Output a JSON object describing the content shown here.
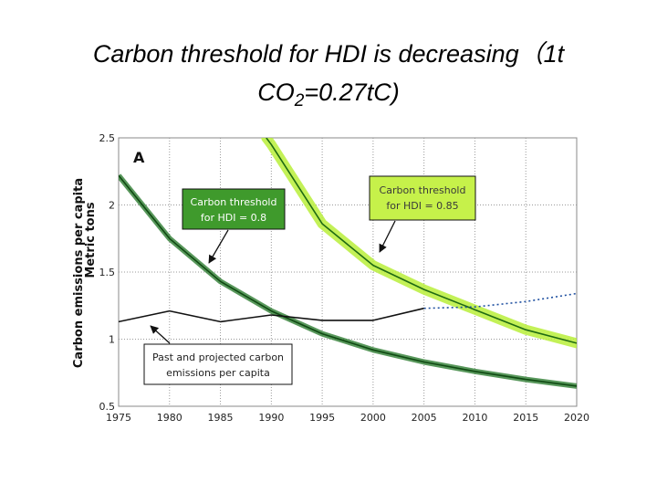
{
  "title": {
    "line1": "Carbon threshold for HDI is decreasing（1t",
    "line2_pre": "CO",
    "line2_sub": "2",
    "line2_post": "=0.27tC)"
  },
  "chart_data": {
    "type": "line",
    "panel_label": "A",
    "ylabel_line1": "Carbon emissions per capita",
    "ylabel_line2": "Metric tons",
    "xlim": [
      1975,
      2020
    ],
    "ylim": [
      0.5,
      2.5
    ],
    "x_ticks": [
      1975,
      1980,
      1985,
      1990,
      1995,
      2000,
      2005,
      2010,
      2015,
      2020
    ],
    "x_tick_labels": [
      "1975",
      "1980",
      "1985",
      "1990",
      "1995",
      "2000",
      "2005",
      "2010",
      "2015",
      "2020"
    ],
    "y_ticks": [
      0.5,
      1,
      1.5,
      2,
      2.5
    ],
    "y_tick_labels": [
      "0.5",
      "1",
      "1.5",
      "2",
      "2.5"
    ],
    "grid": true,
    "series": [
      {
        "name": "Carbon threshold for HDI = 0.8",
        "x": [
          1975,
          1980,
          1985,
          1990,
          1995,
          2000,
          2005,
          2010,
          2015,
          2020
        ],
        "y": [
          2.22,
          1.75,
          1.43,
          1.21,
          1.04,
          0.92,
          0.83,
          0.76,
          0.7,
          0.65
        ],
        "color": "#1a6b1a"
      },
      {
        "name": "Carbon threshold for HDI = 0.85",
        "x": [
          1989.5,
          1990,
          1995,
          2000,
          2005,
          2010,
          2015,
          2020
        ],
        "y": [
          2.5,
          2.45,
          1.86,
          1.55,
          1.37,
          1.22,
          1.07,
          0.97
        ],
        "color": "#2e7d1e"
      },
      {
        "name": "Past and projected carbon emissions per capita",
        "x": [
          1975,
          1980,
          1985,
          1990,
          1995,
          2000,
          2005
        ],
        "y": [
          1.13,
          1.21,
          1.13,
          1.18,
          1.14,
          1.14,
          1.23
        ],
        "color": "#111111"
      },
      {
        "name": "Projected (dotted)",
        "x": [
          2005,
          2010,
          2015,
          2020
        ],
        "y": [
          1.23,
          1.24,
          1.28,
          1.34
        ],
        "color": "#1e4fa0"
      }
    ],
    "annotations": [
      {
        "line1": "Carbon threshold",
        "line2": "for HDI = 0.8"
      },
      {
        "line1": "Carbon threshold",
        "line2": "for HDI = 0.85"
      },
      {
        "line1": "Past and projected carbon",
        "line2": "emissions per capita"
      }
    ]
  }
}
